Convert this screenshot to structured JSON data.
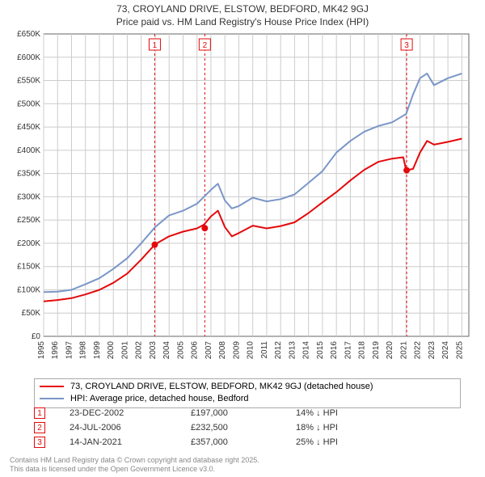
{
  "title_line1": "73, CROYLAND DRIVE, ELSTOW, BEDFORD, MK42 9GJ",
  "title_line2": "Price paid vs. HM Land Registry's House Price Index (HPI)",
  "chart": {
    "type": "line",
    "background_color": "#ffffff",
    "grid_color": "#cccccc",
    "axis_color": "#666666",
    "tick_fontsize": 10,
    "ylabel_fontsize": 10,
    "xlim": [
      1995,
      2025.5
    ],
    "ylim": [
      0,
      650000
    ],
    "ytick_step": 50000,
    "ytick_labels": [
      "£0",
      "£50K",
      "£100K",
      "£150K",
      "£200K",
      "£250K",
      "£300K",
      "£350K",
      "£400K",
      "£450K",
      "£500K",
      "£550K",
      "£600K",
      "£650K"
    ],
    "xticks": [
      1995,
      1996,
      1997,
      1998,
      1999,
      2000,
      2001,
      2002,
      2003,
      2004,
      2005,
      2006,
      2007,
      2008,
      2009,
      2010,
      2011,
      2012,
      2013,
      2014,
      2015,
      2016,
      2017,
      2018,
      2019,
      2020,
      2021,
      2022,
      2023,
      2024,
      2025
    ],
    "series_price": {
      "label": "73, CROYLAND DRIVE, ELSTOW, BEDFORD, MK42 9GJ (detached house)",
      "color": "#e4090b",
      "line_width": 2,
      "x": [
        1995,
        1996,
        1997,
        1998,
        1999,
        2000,
        2001,
        2002,
        2003,
        2004,
        2005,
        2006,
        2006.5,
        2007,
        2007.5,
        2008,
        2008.5,
        2009,
        2010,
        2011,
        2012,
        2013,
        2014,
        2015,
        2016,
        2017,
        2018,
        2019,
        2020,
        2020.8,
        2021,
        2021.5,
        2022,
        2022.5,
        2023,
        2024,
        2025
      ],
      "y": [
        75000,
        78000,
        82000,
        90000,
        100000,
        115000,
        135000,
        165000,
        198000,
        215000,
        225000,
        232000,
        240000,
        258000,
        270000,
        235000,
        215000,
        222000,
        238000,
        232000,
        237000,
        245000,
        265000,
        288000,
        310000,
        335000,
        358000,
        375000,
        382000,
        385000,
        357000,
        360000,
        395000,
        420000,
        412000,
        418000,
        425000
      ]
    },
    "series_hpi": {
      "label": "HPI: Average price, detached house, Bedford",
      "color": "#7a96c8",
      "line_width": 2,
      "x": [
        1995,
        1996,
        1997,
        1998,
        1999,
        2000,
        2001,
        2002,
        2003,
        2004,
        2005,
        2006,
        2007,
        2007.5,
        2008,
        2008.5,
        2009,
        2010,
        2011,
        2012,
        2013,
        2014,
        2015,
        2016,
        2017,
        2018,
        2019,
        2020,
        2021,
        2021.5,
        2022,
        2022.5,
        2023,
        2024,
        2025
      ],
      "y": [
        95000,
        96000,
        100000,
        112000,
        125000,
        145000,
        168000,
        200000,
        235000,
        260000,
        270000,
        285000,
        315000,
        328000,
        292000,
        275000,
        280000,
        298000,
        290000,
        295000,
        305000,
        330000,
        355000,
        395000,
        420000,
        440000,
        452000,
        460000,
        478000,
        520000,
        555000,
        565000,
        540000,
        555000,
        565000
      ]
    },
    "event_markers": [
      {
        "n": "1",
        "x": 2002.97,
        "color": "#e4090b"
      },
      {
        "n": "2",
        "x": 2006.56,
        "color": "#e4090b"
      },
      {
        "n": "3",
        "x": 2021.04,
        "color": "#e4090b"
      }
    ],
    "event_points": [
      {
        "x": 2002.97,
        "y": 197000,
        "color": "#e4090b"
      },
      {
        "x": 2006.56,
        "y": 232500,
        "color": "#e4090b"
      },
      {
        "x": 2021.04,
        "y": 357000,
        "color": "#e4090b"
      }
    ]
  },
  "legend": {
    "rows": [
      {
        "color": "#e4090b",
        "label": "73, CROYLAND DRIVE, ELSTOW, BEDFORD, MK42 9GJ (detached house)"
      },
      {
        "color": "#7a96c8",
        "label": "HPI: Average price, detached house, Bedford"
      }
    ]
  },
  "events": [
    {
      "n": "1",
      "color": "#e4090b",
      "date": "23-DEC-2002",
      "price": "£197,000",
      "delta": "14% ↓ HPI"
    },
    {
      "n": "2",
      "color": "#e4090b",
      "date": "24-JUL-2006",
      "price": "£232,500",
      "delta": "18% ↓ HPI"
    },
    {
      "n": "3",
      "color": "#e4090b",
      "date": "14-JAN-2021",
      "price": "£357,000",
      "delta": "25% ↓ HPI"
    }
  ],
  "attribution_line1": "Contains HM Land Registry data © Crown copyright and database right 2025.",
  "attribution_line2": "This data is licensed under the Open Government Licence v3.0."
}
